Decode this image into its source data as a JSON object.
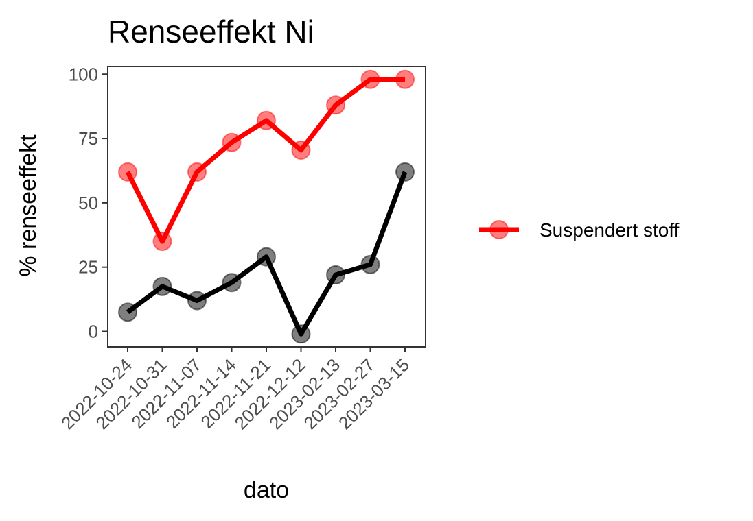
{
  "chart_data": {
    "type": "line",
    "title": "Renseeffekt Ni",
    "xlabel": "dato",
    "ylabel": "% renseeffekt",
    "categories": [
      "2022-10-24",
      "2022-10-31",
      "2022-11-07",
      "2022-11-14",
      "2022-11-21",
      "2022-12-12",
      "2023-02-13",
      "2023-02-27",
      "2023-03-15"
    ],
    "ylim": [
      -6,
      103
    ],
    "yticks": [
      0,
      25,
      50,
      75,
      100
    ],
    "grid": false,
    "legend_position": "right",
    "series": [
      {
        "name": "Suspendert stoff",
        "color": "#ff0000",
        "values": [
          62,
          35,
          62,
          73.5,
          82,
          70.5,
          88,
          98,
          98
        ]
      },
      {
        "color": "#000000",
        "values": [
          7.5,
          17.5,
          12,
          19,
          29,
          -1,
          22,
          26,
          62
        ]
      }
    ]
  }
}
